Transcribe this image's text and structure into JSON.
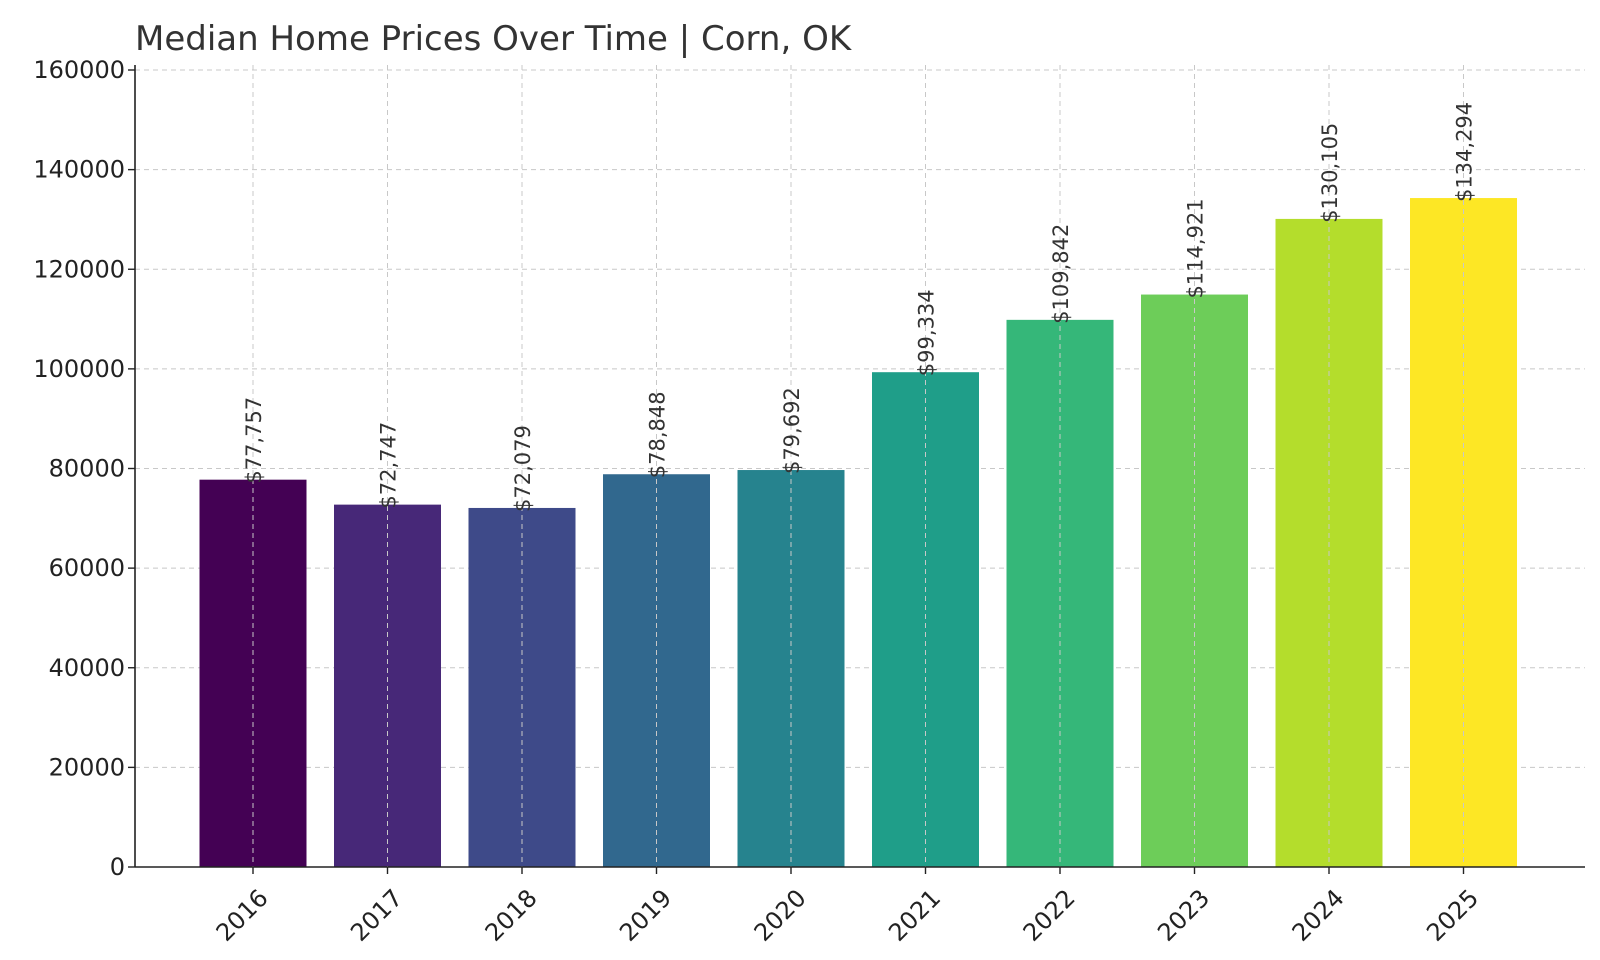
{
  "chart_data": {
    "type": "bar",
    "title": "Median Home Prices Over Time | Corn, OK",
    "xlabel": "",
    "ylabel": "",
    "categories": [
      "2016",
      "2017",
      "2018",
      "2019",
      "2020",
      "2021",
      "2022",
      "2023",
      "2024",
      "2025"
    ],
    "values": [
      77757,
      72747,
      72079,
      78848,
      79692,
      99334,
      109842,
      114921,
      130105,
      134294
    ],
    "value_labels": [
      "$77,757",
      "$72,747",
      "$72,079",
      "$78,848",
      "$79,692",
      "$99,334",
      "$109,842",
      "$114,921",
      "$130,105",
      "$134,294"
    ],
    "colors": [
      "#440154",
      "#472878",
      "#3e4a89",
      "#31688e",
      "#26838e",
      "#1f9e89",
      "#35b779",
      "#6dcd59",
      "#b4dd2c",
      "#fde725"
    ],
    "ylim": [
      0,
      160000
    ],
    "yticks": [
      0,
      20000,
      40000,
      60000,
      80000,
      100000,
      120000,
      140000,
      160000
    ],
    "ytick_labels": [
      "0",
      "20000",
      "40000",
      "60000",
      "80000",
      "100000",
      "120000",
      "140000",
      "160000"
    ],
    "grid": true,
    "legend": "none"
  }
}
